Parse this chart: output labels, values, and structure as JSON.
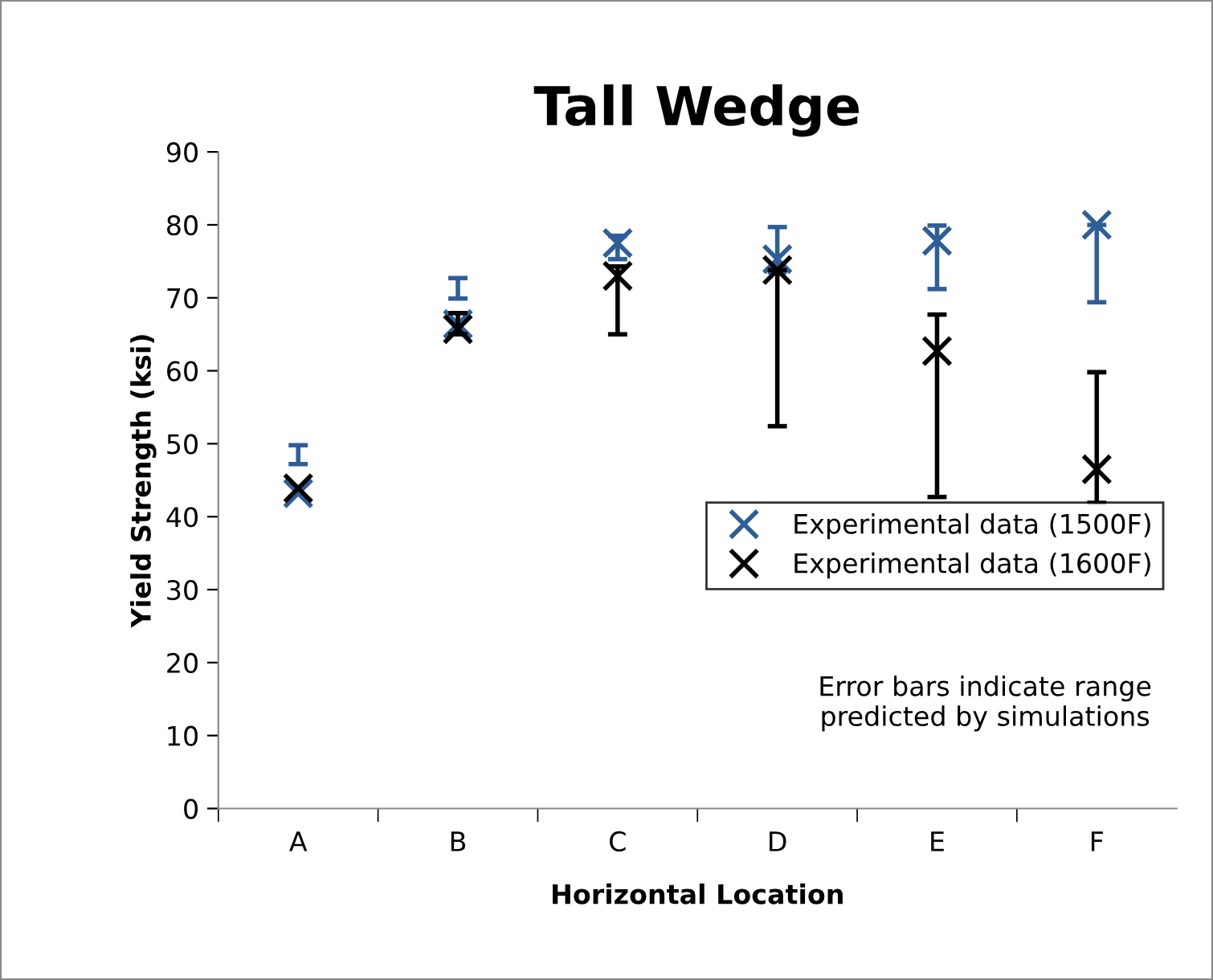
{
  "chart_data": {
    "type": "scatter",
    "title": "Tall Wedge",
    "xlabel": "Horizontal Location",
    "ylabel": "Yield Strength (ksi)",
    "categories": [
      "A",
      "B",
      "C",
      "D",
      "E",
      "F"
    ],
    "series": [
      {
        "name": "Experimental data (1500F)",
        "color": "#2f5e97",
        "values": [
          43.2,
          66.4,
          77.5,
          75.3,
          77.8,
          80.0
        ],
        "errors": [
          [
            47.2,
            49.8
          ],
          [
            69.9,
            72.7
          ],
          [
            75.3,
            78.5
          ],
          [
            73.5,
            79.7
          ],
          [
            71.2,
            79.9
          ],
          [
            69.4,
            80.0
          ]
        ]
      },
      {
        "name": "Experimental data (1600F)",
        "color": "#000000",
        "values": [
          43.9,
          65.7,
          73.0,
          73.8,
          62.7,
          46.5
        ],
        "errors": [
          null,
          [
            65.0,
            67.9
          ],
          [
            65.0,
            74.3
          ],
          [
            52.4,
            73.8
          ],
          [
            42.7,
            67.7
          ],
          [
            41.9,
            59.8
          ]
        ]
      }
    ],
    "ylim": [
      0,
      90
    ],
    "yticks": [
      0,
      10,
      20,
      30,
      40,
      50,
      60,
      70,
      80,
      90
    ],
    "grid": false,
    "legend": "right",
    "marker": "cross",
    "annotations": [
      "Error bars indicate range\npredicted by simulations"
    ]
  }
}
